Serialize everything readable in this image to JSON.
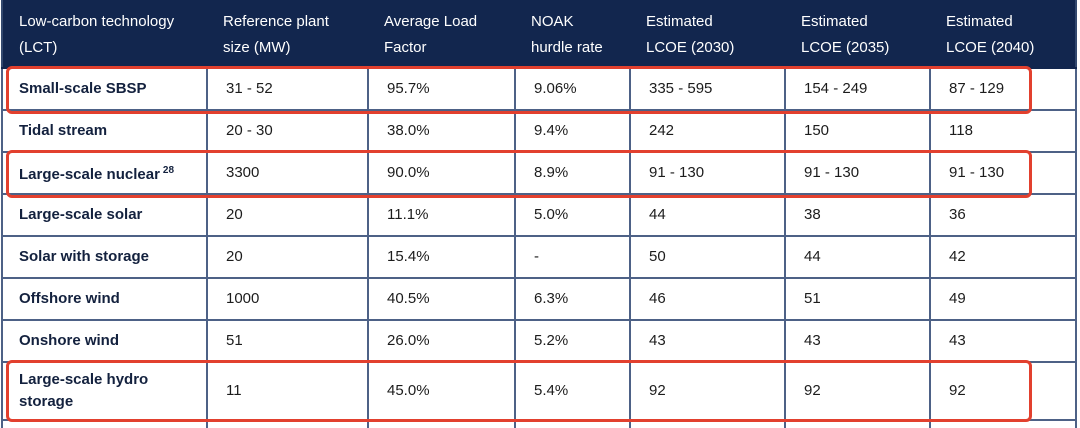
{
  "colors": {
    "header_bg": "#12264E",
    "header_text": "#FFFFFF",
    "gridline": "#4D6186",
    "row_label_text": "#13213E",
    "value_text": "#1C1C1C",
    "highlight_border": "#E2402E",
    "row_bg": "#FFFFFF"
  },
  "table": {
    "columns": [
      {
        "label": "Low-carbon technology\n(LCT)"
      },
      {
        "label": "Reference plant\nsize (MW)"
      },
      {
        "label": "Average Load\nFactor"
      },
      {
        "label": "NOAK\nhurdle rate"
      },
      {
        "label": "Estimated\nLCOE (2030)"
      },
      {
        "label": "Estimated\nLCOE (2035)"
      },
      {
        "label": "Estimated\nLCOE (2040)"
      }
    ],
    "rows": [
      {
        "lct": "Small-scale SBSP",
        "values": [
          "31 - 52",
          "95.7%",
          "9.06%",
          "335 - 595",
          "154 - 249",
          "87 - 129"
        ],
        "highlighted": true
      },
      {
        "lct": "Tidal stream",
        "values": [
          "20 - 30",
          "38.0%",
          "9.4%",
          "242",
          "150",
          "118"
        ],
        "highlighted": false
      },
      {
        "lct": "Large-scale nuclear",
        "sup": "28",
        "values": [
          "3300",
          "90.0%",
          "8.9%",
          "91 - 130",
          "91 - 130",
          "91 - 130"
        ],
        "highlighted": true
      },
      {
        "lct": "Large-scale solar",
        "values": [
          "20",
          "11.1%",
          "5.0%",
          "44",
          "38",
          "36"
        ],
        "highlighted": false
      },
      {
        "lct": "Solar with storage",
        "values": [
          "20",
          "15.4%",
          "-",
          "50",
          "44",
          "42"
        ],
        "highlighted": false
      },
      {
        "lct": "Offshore wind",
        "values": [
          "1000",
          "40.5%",
          "6.3%",
          "46",
          "51",
          "49"
        ],
        "highlighted": false
      },
      {
        "lct": "Onshore wind",
        "values": [
          "51",
          "26.0%",
          "5.2%",
          "43",
          "43",
          "43"
        ],
        "highlighted": false
      },
      {
        "lct": "Large-scale hydro\nstorage",
        "values": [
          "11",
          "45.0%",
          "5.4%",
          "92",
          "92",
          "92"
        ],
        "highlighted": true
      }
    ]
  }
}
